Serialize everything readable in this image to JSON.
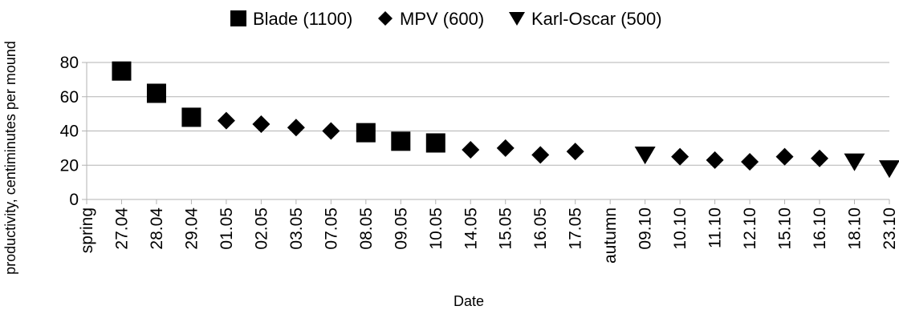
{
  "chart_data": {
    "type": "scatter",
    "xlabel": "Date",
    "ylabel": "productivity, centiminutes per mound",
    "ylim": [
      0,
      80
    ],
    "yticks": [
      0,
      20,
      40,
      60,
      80
    ],
    "grid": true,
    "legend_position": "top",
    "categories": [
      "spring",
      "27.04",
      "28.04",
      "29.04",
      "01.05",
      "02.05",
      "03.05",
      "07.05",
      "08.05",
      "09.05",
      "10.05",
      "14.05",
      "15.05",
      "16.05",
      "17.05",
      "autumn",
      "09.10",
      "10.10",
      "11.10",
      "12.10",
      "15.10",
      "16.10",
      "18.10",
      "23.10"
    ],
    "series": [
      {
        "name": "Blade (1100)",
        "marker": "square",
        "color": "#000000",
        "points": [
          {
            "x": "27.04",
            "y": 75
          },
          {
            "x": "28.04",
            "y": 62
          },
          {
            "x": "29.04",
            "y": 48
          },
          {
            "x": "08.05",
            "y": 39
          },
          {
            "x": "09.05",
            "y": 34
          },
          {
            "x": "10.05",
            "y": 33
          }
        ]
      },
      {
        "name": "MPV (600)",
        "marker": "diamond",
        "color": "#000000",
        "points": [
          {
            "x": "01.05",
            "y": 46
          },
          {
            "x": "02.05",
            "y": 44
          },
          {
            "x": "03.05",
            "y": 42
          },
          {
            "x": "07.05",
            "y": 40
          },
          {
            "x": "14.05",
            "y": 29
          },
          {
            "x": "15.05",
            "y": 30
          },
          {
            "x": "16.05",
            "y": 26
          },
          {
            "x": "17.05",
            "y": 28
          },
          {
            "x": "10.10",
            "y": 25
          },
          {
            "x": "11.10",
            "y": 23
          },
          {
            "x": "12.10",
            "y": 22
          },
          {
            "x": "15.10",
            "y": 25
          },
          {
            "x": "16.10",
            "y": 24
          }
        ]
      },
      {
        "name": "Karl-Oscar (500)",
        "marker": "triangle-down",
        "color": "#000000",
        "points": [
          {
            "x": "09.10",
            "y": 26
          },
          {
            "x": "18.10",
            "y": 22
          },
          {
            "x": "23.10",
            "y": 18
          }
        ]
      }
    ]
  }
}
